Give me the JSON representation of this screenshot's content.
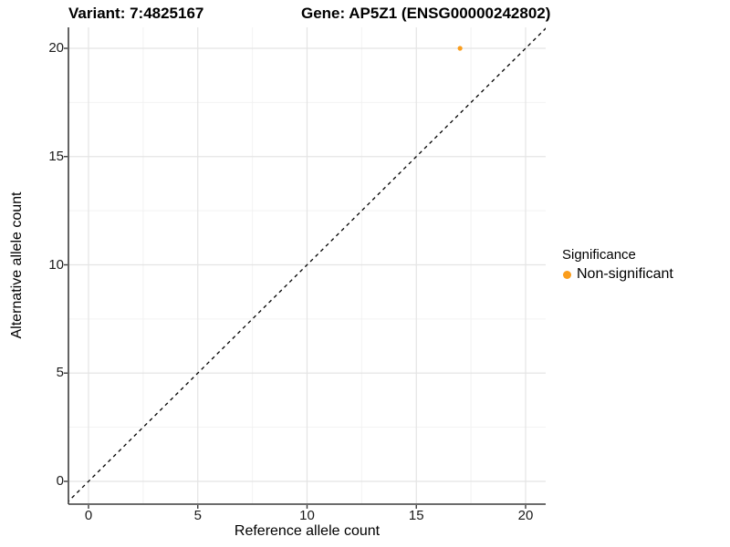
{
  "chart_data": {
    "type": "scatter",
    "title_left": "Variant: 7:4825167",
    "title_right": "Gene: AP5Z1 (ENSG00000242802)",
    "xlabel": "Reference allele count",
    "ylabel": "Alternative allele count",
    "xlim": [
      -1,
      21
    ],
    "ylim": [
      -1,
      21
    ],
    "x_ticks": [
      0,
      5,
      10,
      15,
      20
    ],
    "y_ticks": [
      0,
      5,
      10,
      15,
      20
    ],
    "x_minor_ticks": [
      2.5,
      7.5,
      12.5,
      17.5
    ],
    "y_minor_ticks": [
      2.5,
      7.5,
      12.5,
      17.5
    ],
    "grid": "major+minor",
    "series": [
      {
        "name": "Non-significant",
        "color": "#FA9D1C",
        "points": [
          {
            "x": 17,
            "y": 20
          }
        ]
      }
    ],
    "reference_line": {
      "kind": "identity y=x",
      "style": "dashed",
      "color": "#000000",
      "from": [
        -1,
        -1
      ],
      "to": [
        21,
        21
      ]
    },
    "legend": {
      "title": "Significance",
      "position": "right",
      "entries": [
        {
          "label": "Non-significant",
          "color": "#FA9D1C"
        }
      ]
    }
  },
  "colors": {
    "background": "#FFFFFF",
    "grid_major": "#E4E4E4",
    "grid_minor": "#F2F2F2",
    "axis_line": "#3C3C3C",
    "tick_mark": "#3C3C3C",
    "text": "#000000"
  }
}
